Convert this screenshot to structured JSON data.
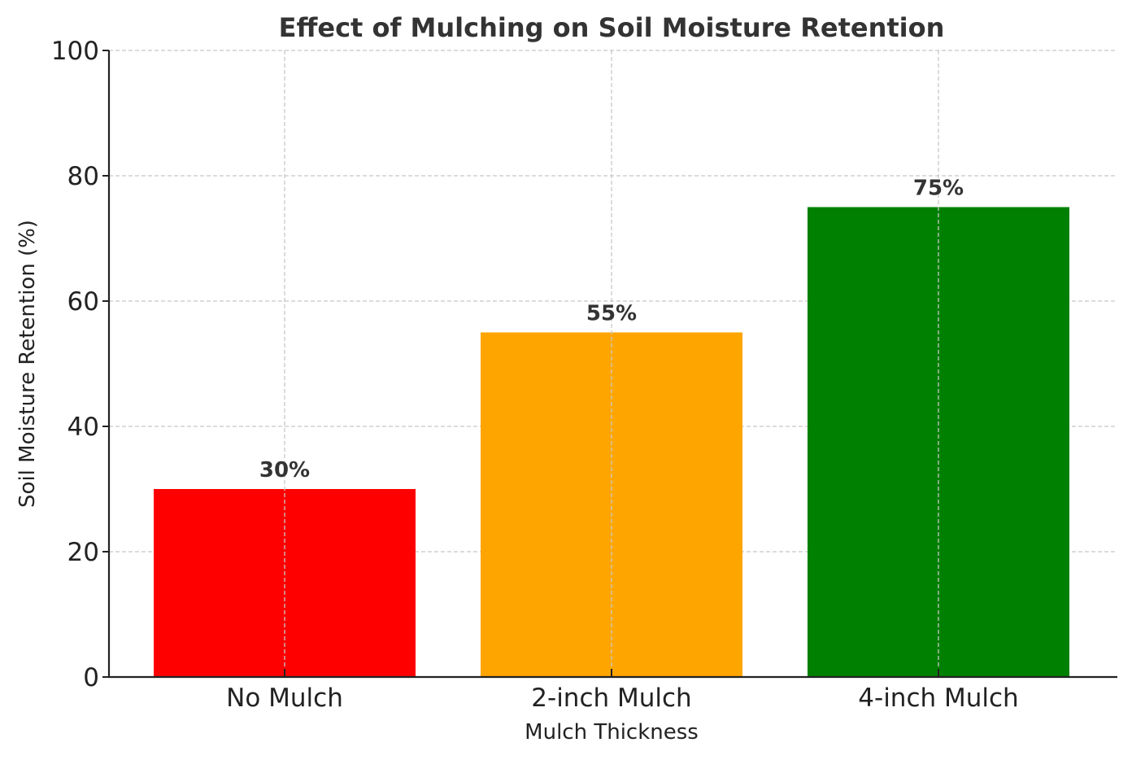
{
  "chart_data": {
    "type": "bar",
    "title": "Effect of Mulching on Soil Moisture Retention",
    "xlabel": "Mulch Thickness",
    "ylabel": "Soil Moisture Retention (%)",
    "categories": [
      "No Mulch",
      "2-inch Mulch",
      "4-inch Mulch"
    ],
    "values": [
      30,
      55,
      75
    ],
    "value_labels": [
      "30%",
      "55%",
      "75%"
    ],
    "colors": [
      "#ff0000",
      "#ffa500",
      "#008000"
    ],
    "ylim": [
      0,
      100
    ],
    "yticks": [
      0,
      20,
      40,
      60,
      80,
      100
    ],
    "ytick_labels": [
      "0",
      "20",
      "40",
      "60",
      "80",
      "100"
    ],
    "grid": true,
    "grid_style": "dashed",
    "legend": "none"
  }
}
